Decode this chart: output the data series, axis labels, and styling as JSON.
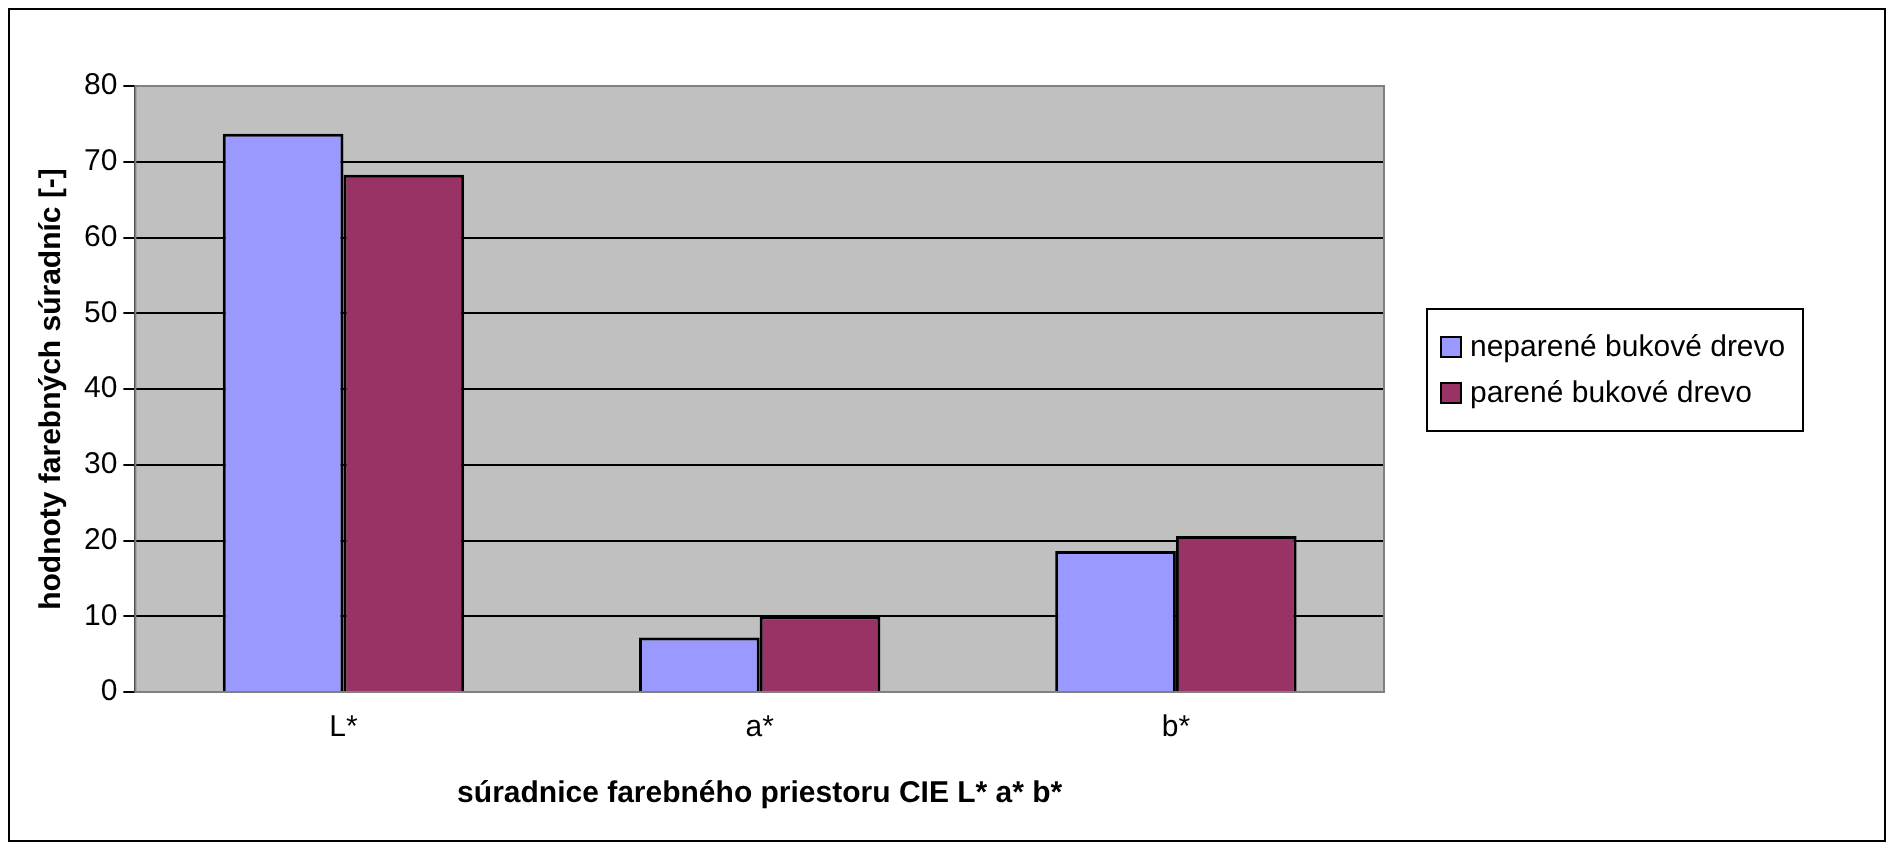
{
  "chart_data": {
    "type": "bar",
    "xlabel": "súradnice farebného priestoru CIE L* a* b*",
    "ylabel": "hodnoty farebných súradníc [-]",
    "categories": [
      "L*",
      "a*",
      "b*"
    ],
    "series": [
      {
        "name": "neparené bukové drevo",
        "color": "#9999ff",
        "values": [
          73.7,
          7.2,
          18.6
        ]
      },
      {
        "name": "parené bukové drevo",
        "color": "#993366",
        "values": [
          68.3,
          10.0,
          20.6
        ]
      }
    ],
    "ylim": [
      0,
      80
    ],
    "yticks": [
      0,
      10,
      20,
      30,
      40,
      50,
      60,
      70,
      80
    ],
    "grid": "y",
    "legend": "right"
  }
}
